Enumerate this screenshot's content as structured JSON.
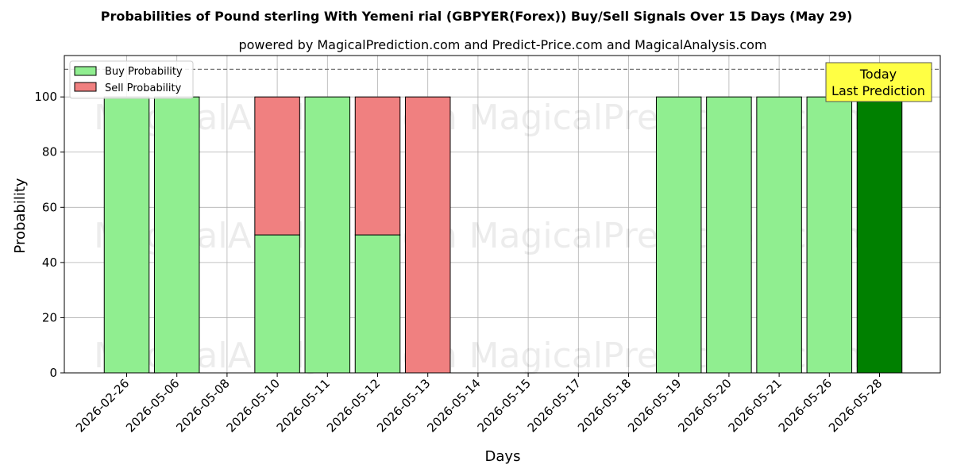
{
  "chart_data": {
    "type": "bar",
    "stacked": true,
    "title": "Probabilities of Pound sterling With Yemeni rial (GBPYER(Forex)) Buy/Sell Signals Over 15 Days (May 29)",
    "subtitle": "powered by MagicalPrediction.com and Predict-Price.com and MagicalAnalysis.com",
    "xlabel": "Days",
    "ylabel": "Probability",
    "ylim": [
      0,
      115
    ],
    "yticks": [
      0,
      20,
      40,
      60,
      80,
      100
    ],
    "reference_line": 110,
    "grid": true,
    "legend_position": "top-left",
    "categories": [
      "2026-02-26",
      "2026-05-06",
      "2026-05-08",
      "2026-05-10",
      "2026-05-11",
      "2026-05-12",
      "2026-05-13",
      "2026-05-14",
      "2026-05-15",
      "2026-05-17",
      "2026-05-18",
      "2026-05-19",
      "2026-05-20",
      "2026-05-21",
      "2026-05-26",
      "2026-05-28"
    ],
    "series": [
      {
        "name": "Buy Probability",
        "color": "#90ee90",
        "values": [
          100,
          100,
          0,
          50,
          100,
          50,
          0,
          0,
          0,
          0,
          0,
          100,
          100,
          100,
          100,
          100
        ]
      },
      {
        "name": "Sell Probability",
        "color": "#f08080",
        "values": [
          0,
          0,
          0,
          50,
          0,
          50,
          100,
          0,
          0,
          0,
          0,
          0,
          0,
          0,
          0,
          0
        ]
      }
    ],
    "highlight": {
      "index": 15,
      "color": "#008000",
      "label_line1": "Today",
      "label_line2": "Last Prediction",
      "box_color": "#ffff44"
    }
  },
  "watermarks": [
    "MagicalAnalysis.com",
    "MagicalPrediction.com"
  ]
}
